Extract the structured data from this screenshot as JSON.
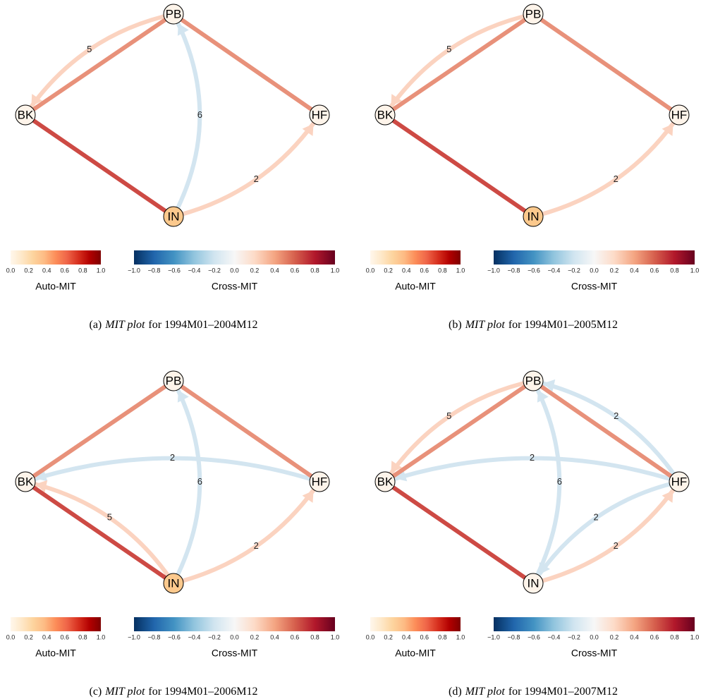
{
  "colorbars": {
    "auto": {
      "title": "Auto-MIT",
      "ticks": [
        "0.0",
        "0.2",
        "0.4",
        "0.6",
        "0.8",
        "1.0"
      ],
      "colors": [
        "#fff7ec",
        "#fee8c8",
        "#fdd49e",
        "#fdbb84",
        "#fc8d59",
        "#ef6548",
        "#d7301f",
        "#b30000",
        "#7f0000"
      ]
    },
    "cross": {
      "title": "Cross-MIT",
      "ticks": [
        "−1.0",
        "−0.8",
        "−0.6",
        "−0.4",
        "−0.2",
        "0.0",
        "0.2",
        "0.4",
        "0.6",
        "0.8",
        "1.0"
      ],
      "colors": [
        "#053061",
        "#2166ac",
        "#4393c3",
        "#92c5de",
        "#d1e5f0",
        "#f7f7f7",
        "#fddbc7",
        "#f4a582",
        "#d6604d",
        "#b2182b",
        "#67001f"
      ]
    }
  },
  "panels": [
    {
      "caption": {
        "label": "(a)",
        "emphasis": "MIT plot",
        "rest": "for 1994M01–2004M12"
      },
      "nodes": [
        {
          "name": "PB",
          "color": "#fef4ea"
        },
        {
          "name": "BK",
          "color": "#fef4ea"
        },
        {
          "name": "HF",
          "color": "#fef4ea"
        },
        {
          "name": "IN",
          "color": "#fcc98d"
        }
      ],
      "edges": [
        {
          "from": "PB",
          "to": "BK",
          "color": "#e8917a"
        },
        {
          "from": "PB",
          "to": "HF",
          "color": "#e8917a"
        },
        {
          "from": "BK",
          "to": "IN",
          "color": "#cd4a44"
        },
        {
          "from": "PB",
          "to": "BK",
          "label": "5",
          "color": "#fbd3c0",
          "arrow": true
        },
        {
          "from": "IN",
          "to": "PB",
          "label": "6",
          "color": "#d3e5f0",
          "arrow": true
        },
        {
          "from": "IN",
          "to": "HF",
          "label": "2",
          "color": "#fbd3c0",
          "arrow": true
        }
      ]
    },
    {
      "caption": {
        "label": "(b)",
        "emphasis": "MIT plot",
        "rest": "for 1994M01–2005M12"
      },
      "nodes": [
        {
          "name": "PB",
          "color": "#fef4ea"
        },
        {
          "name": "BK",
          "color": "#fef4ea"
        },
        {
          "name": "HF",
          "color": "#fef4ea"
        },
        {
          "name": "IN",
          "color": "#fcc98d"
        }
      ],
      "edges": [
        {
          "from": "PB",
          "to": "BK",
          "color": "#e8917a"
        },
        {
          "from": "PB",
          "to": "HF",
          "color": "#e8917a"
        },
        {
          "from": "BK",
          "to": "IN",
          "color": "#cd4a44"
        },
        {
          "from": "PB",
          "to": "BK",
          "label": "5",
          "color": "#fbd3c0",
          "arrow": true
        },
        {
          "from": "IN",
          "to": "HF",
          "label": "2",
          "color": "#fbd3c0",
          "arrow": true
        }
      ]
    },
    {
      "caption": {
        "label": "(c)",
        "emphasis": "MIT plot",
        "rest": "for 1994M01–2006M12"
      },
      "nodes": [
        {
          "name": "PB",
          "color": "#fef4ea"
        },
        {
          "name": "BK",
          "color": "#fef4ea"
        },
        {
          "name": "HF",
          "color": "#fef4ea"
        },
        {
          "name": "IN",
          "color": "#fcc98d"
        }
      ],
      "edges": [
        {
          "from": "PB",
          "to": "BK",
          "color": "#e8917a"
        },
        {
          "from": "PB",
          "to": "HF",
          "color": "#e8917a"
        },
        {
          "from": "BK",
          "to": "IN",
          "color": "#cd4a44"
        },
        {
          "from": "IN",
          "to": "PB",
          "label": "6",
          "color": "#d3e5f0",
          "arrow": true
        },
        {
          "from": "HF",
          "to": "BK",
          "label": "2",
          "color": "#d3e5f0",
          "arrow": true
        },
        {
          "from": "IN",
          "to": "BK",
          "label": "5",
          "color": "#fbd3c0",
          "arrow": true
        },
        {
          "from": "IN",
          "to": "HF",
          "label": "2",
          "color": "#fbd3c0",
          "arrow": true
        }
      ]
    },
    {
      "caption": {
        "label": "(d)",
        "emphasis": "MIT plot",
        "rest": "for 1994M01–2007M12"
      },
      "nodes": [
        {
          "name": "PB",
          "color": "#fef4ea"
        },
        {
          "name": "BK",
          "color": "#fef4ea"
        },
        {
          "name": "HF",
          "color": "#fef4ea"
        },
        {
          "name": "IN",
          "color": "#fef4ea"
        }
      ],
      "edges": [
        {
          "from": "PB",
          "to": "BK",
          "color": "#e8917a"
        },
        {
          "from": "PB",
          "to": "HF",
          "color": "#e8917a"
        },
        {
          "from": "BK",
          "to": "IN",
          "color": "#cd4a44"
        },
        {
          "from": "PB",
          "to": "BK",
          "label": "5",
          "color": "#fbd3c0",
          "arrow": true
        },
        {
          "from": "HF",
          "to": "PB",
          "label": "2",
          "color": "#d3e5f0",
          "arrow": true
        },
        {
          "from": "HF",
          "to": "BK",
          "label": "2",
          "color": "#d3e5f0",
          "arrow": true
        },
        {
          "from": "IN",
          "to": "PB",
          "label": "6",
          "color": "#d3e5f0",
          "arrow": true
        },
        {
          "from": "HF",
          "to": "IN",
          "label": "2",
          "color": "#d3e5f0",
          "arrow": true
        },
        {
          "from": "IN",
          "to": "HF",
          "label": "2",
          "color": "#fbd3c0",
          "arrow": true
        }
      ]
    }
  ]
}
